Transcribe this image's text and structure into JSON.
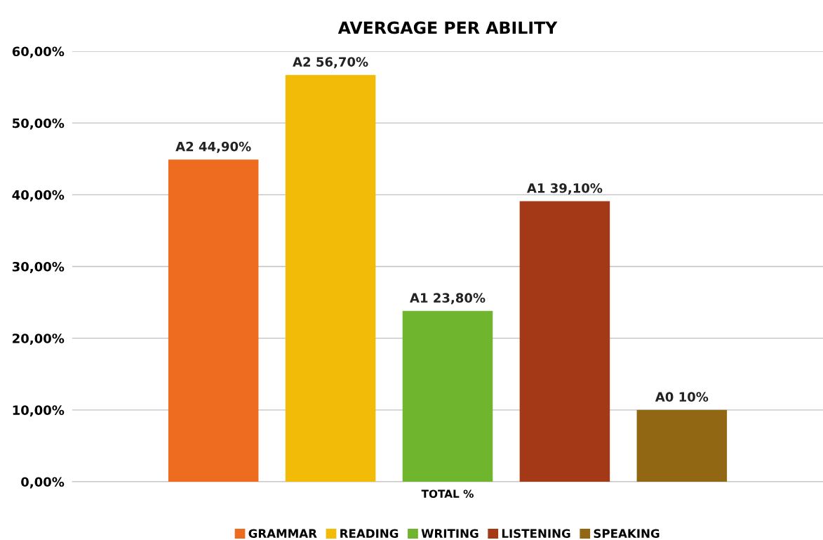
{
  "chart_data": {
    "type": "bar",
    "title": "AVERGAGE PER ABILITY",
    "categories": [
      "TOTAL %"
    ],
    "series": [
      {
        "name": "GRAMMAR",
        "color": "#ee6c1f",
        "values": [
          44.9
        ],
        "value_labels": [
          "A2 44,90%"
        ]
      },
      {
        "name": "READING",
        "color": "#f2bb07",
        "values": [
          56.7
        ],
        "value_labels": [
          "A2 56,70%"
        ]
      },
      {
        "name": "WRITING",
        "color": "#6fb52e",
        "values": [
          23.8
        ],
        "value_labels": [
          "A1 23,80%"
        ]
      },
      {
        "name": "LISTENING",
        "color": "#a33917",
        "values": [
          39.1
        ],
        "value_labels": [
          "A1 39,10%"
        ]
      },
      {
        "name": "SPEAKING",
        "color": "#926714",
        "values": [
          10
        ],
        "value_labels": [
          "A0 10%"
        ]
      }
    ],
    "ylim": [
      0,
      60
    ],
    "yticks": [
      {
        "value": 0,
        "label": "0,00%"
      },
      {
        "value": 10,
        "label": "10,00%"
      },
      {
        "value": 20,
        "label": "20,00%"
      },
      {
        "value": 30,
        "label": "30,00%"
      },
      {
        "value": 40,
        "label": "40,00%"
      },
      {
        "value": 50,
        "label": "50,00%"
      },
      {
        "value": 60,
        "label": "60,00%"
      }
    ],
    "grid": "y",
    "legend": "bottom"
  }
}
